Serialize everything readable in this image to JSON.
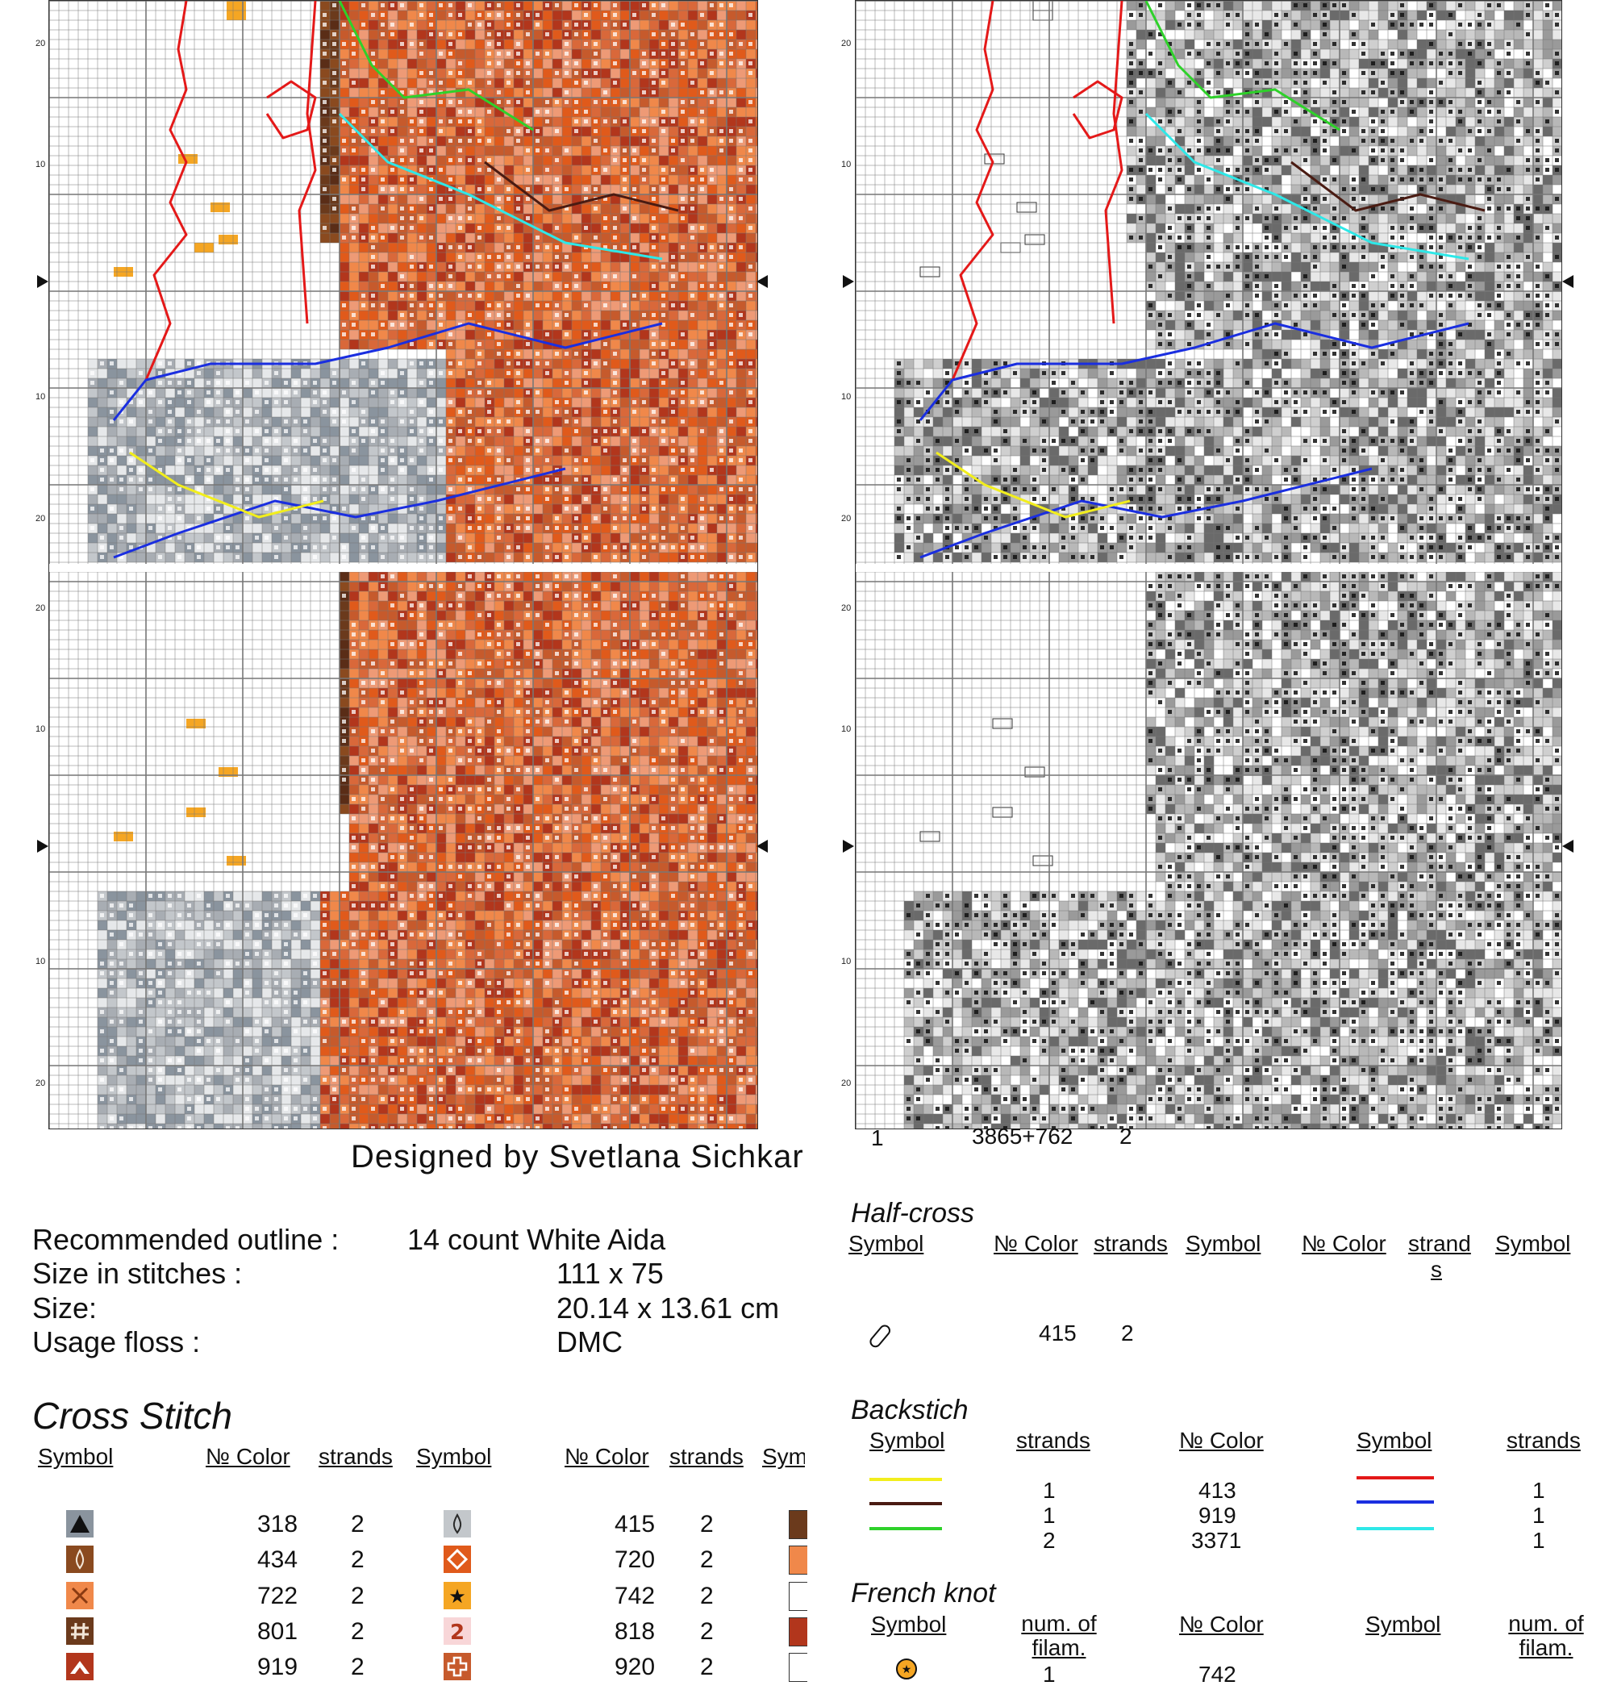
{
  "colors": {
    "c318": "#8a949e",
    "c415": "#c3c7cb",
    "c434": "#8a4a1f",
    "c720": "#e05a1b",
    "c722": "#f0884a",
    "c742": "#f5a623",
    "c801": "#6b3a1c",
    "c818": "#f8d6d8",
    "c919": "#b2361c",
    "c920": "#c65a2c",
    "bs_413": "#f2ee1c",
    "bs_919": "#4a1b12",
    "bs_3371": "#2ed12a",
    "bs_red": "#e41919",
    "bs_blue": "#1a2ee0",
    "bs_cyan": "#2ee8e8"
  },
  "chart_left": {
    "row_labels": [
      "20",
      "10",
      "10",
      "20",
      "20",
      "10",
      "10",
      "20"
    ]
  },
  "chart_right": {
    "row_labels": [
      "20",
      "10",
      "10",
      "20",
      "20",
      "10",
      "10",
      "20"
    ],
    "footer": {
      "left": "1",
      "mid": "3865+762",
      "right": "2"
    }
  },
  "designer": "Designed by Svetlana Sichkar",
  "info": {
    "outline_label": "Recommended outline :",
    "outline_value": "14 count White Aida",
    "size_stitches_label": "Size in stitches :",
    "size_stitches_value": "111 x 75",
    "size_label": "Size:",
    "size_value": "20.14 x 13.61 cm",
    "floss_label": "Usage floss :",
    "floss_value": "DMC"
  },
  "cross_stitch": {
    "title": "Cross Stitch",
    "headers": [
      "Symbol",
      "№ Color",
      "strands",
      "Symbol",
      "№ Color",
      "strands",
      "Sym"
    ],
    "col1": [
      {
        "icon": "triangle-icon",
        "color": "318",
        "strands": "2"
      },
      {
        "icon": "drop-icon",
        "color": "434",
        "strands": "2"
      },
      {
        "icon": "x-icon",
        "color": "722",
        "strands": "2"
      },
      {
        "icon": "hash-icon",
        "color": "801",
        "strands": "2"
      },
      {
        "icon": "chevron-icon",
        "color": "919",
        "strands": "2"
      }
    ],
    "col2": [
      {
        "icon": "drop-icon",
        "color": "415",
        "strands": "2"
      },
      {
        "icon": "diamond-icon",
        "color": "720",
        "strands": "2"
      },
      {
        "icon": "star-icon",
        "color": "742",
        "strands": "2"
      },
      {
        "icon": "two-icon",
        "color": "818",
        "strands": "2"
      },
      {
        "icon": "cross-icon",
        "color": "920",
        "strands": "2"
      }
    ]
  },
  "half_cross": {
    "title": "Half-cross",
    "headers": [
      "Symbol",
      "№ Color",
      "strands",
      "Symbol",
      "№ Color",
      "strand s",
      "Symbol"
    ],
    "row": {
      "icon": "pill-icon",
      "color": "415",
      "strands": "2"
    }
  },
  "backstitch": {
    "title": "Backstich",
    "headers": [
      "Symbol",
      "strands",
      "№ Color",
      "Symbol",
      "strands"
    ],
    "left_rows": [
      {
        "strands": "1",
        "color": "413"
      },
      {
        "strands": "1",
        "color": "919"
      },
      {
        "strands": "2",
        "color": "3371"
      }
    ],
    "right_rows": [
      {
        "strands": "1"
      },
      {
        "strands": "1"
      },
      {
        "strands": "1"
      }
    ]
  },
  "french_knot": {
    "title": "French knot",
    "headers": [
      "Symbol",
      "num. of filam.",
      "№ Color",
      "Symbol",
      "num. of filam."
    ],
    "row": {
      "icon": "star-circle-icon",
      "filam": "1",
      "color": "742"
    }
  }
}
